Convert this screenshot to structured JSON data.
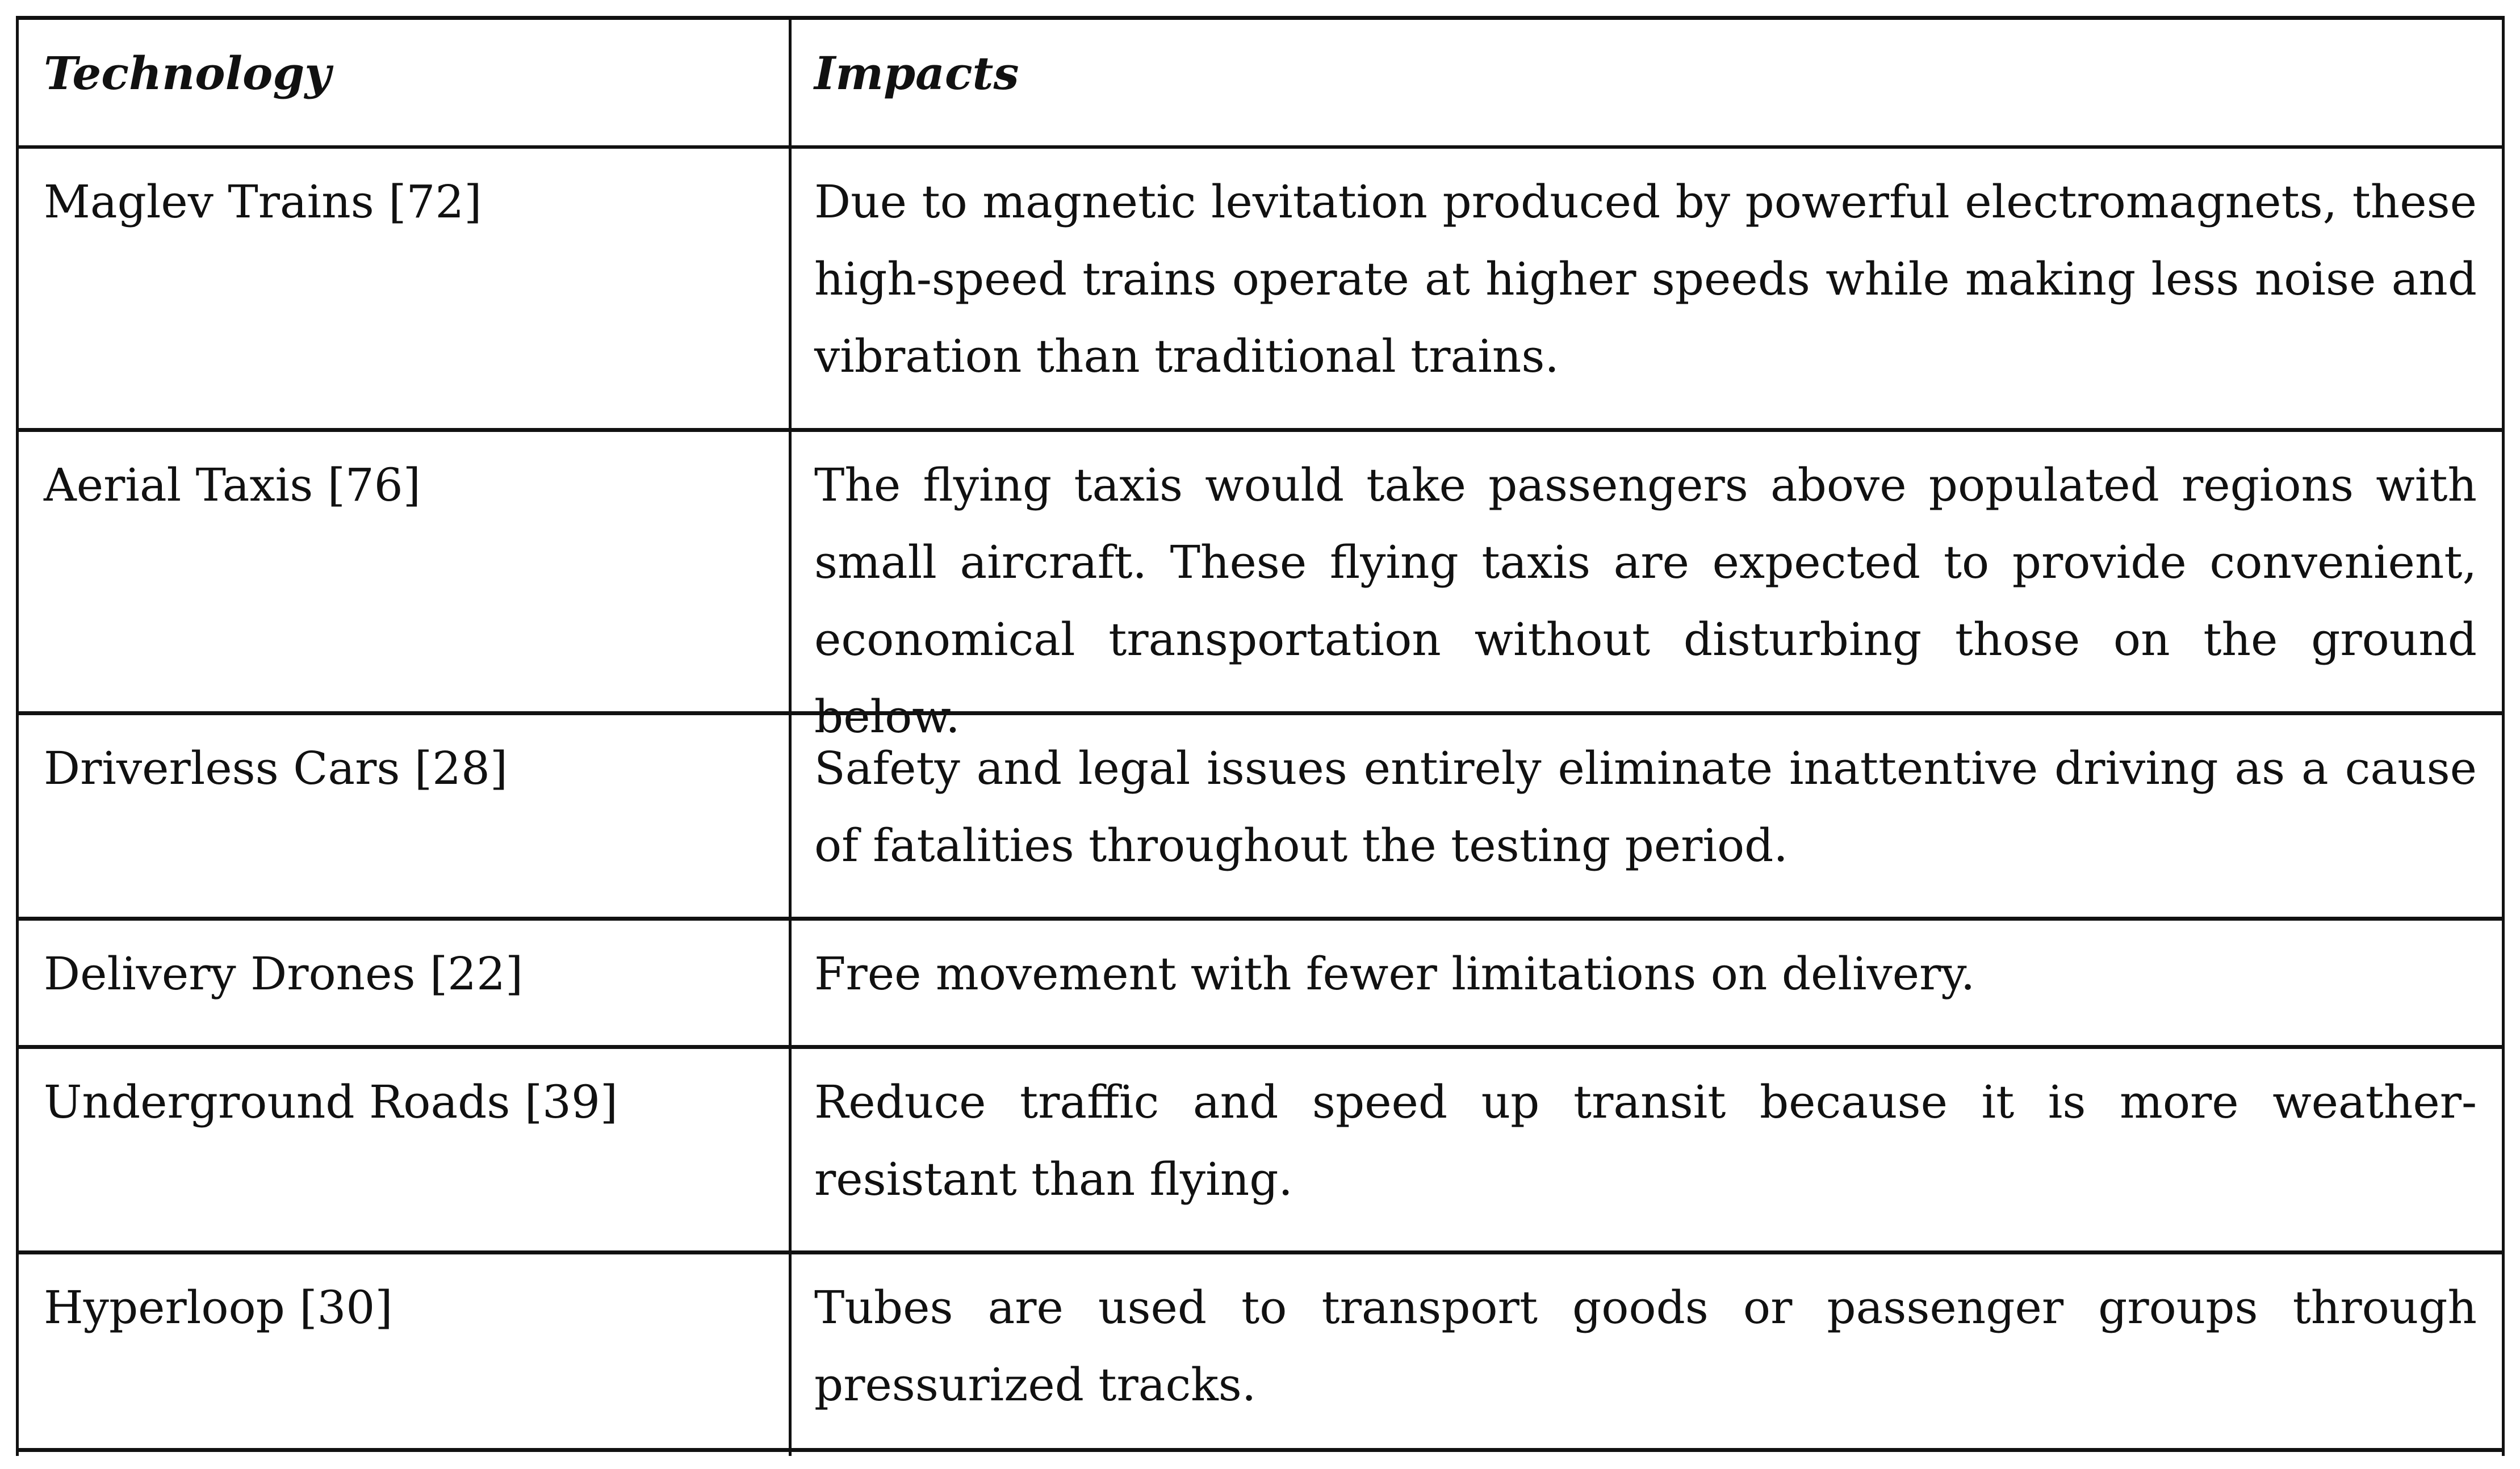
{
  "table": {
    "headers": {
      "technology": "Technology",
      "impacts": "Impacts"
    },
    "rows": [
      {
        "technology": "Maglev Trains [72]",
        "impacts": "Due to magnetic levitation produced by powerful electromagnets, these high-speed trains operate at higher speeds while making less noise and vibration than traditional trains."
      },
      {
        "technology": "Aerial Taxis [76]",
        "impacts": "The flying taxis would take passengers above populated regions with small aircraft. These flying taxis are expected to provide convenient, economical transportation without disturbing those on the ground below."
      },
      {
        "technology": "Driverless Cars [28]",
        "impacts": "Safety and legal issues entirely eliminate inattentive driving as a cause of fatalities throughout the testing period."
      },
      {
        "technology": "Delivery Drones [22]",
        "impacts": "Free movement with fewer limitations on delivery."
      },
      {
        "technology": "Underground Roads [39]",
        "impacts": "Reduce traffic and speed up transit because it is more weather-resistant than flying."
      },
      {
        "technology": "Hyperloop [30]",
        "impacts": "Tubes are used to transport goods or passenger groups through pressurized tracks."
      }
    ]
  }
}
